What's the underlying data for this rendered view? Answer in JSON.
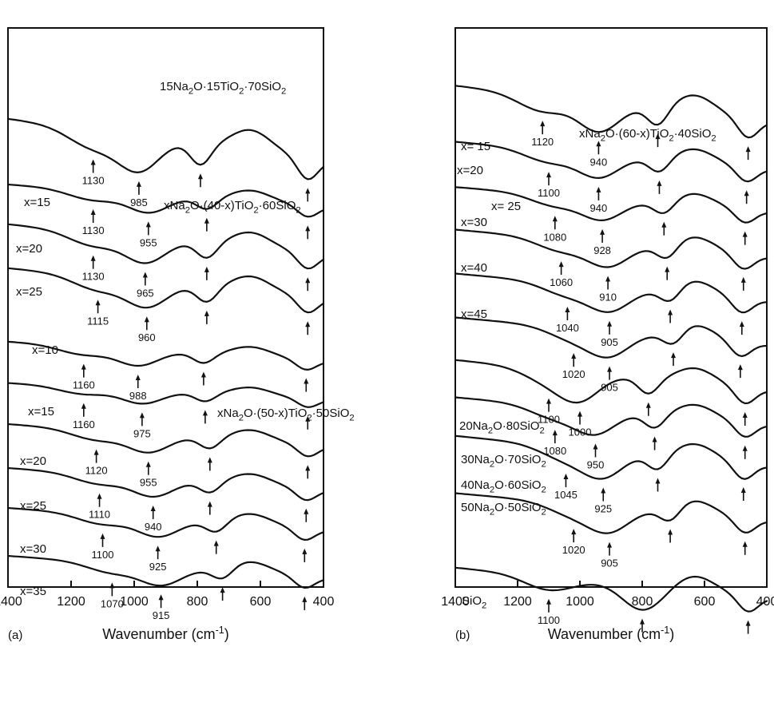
{
  "chart_data": [
    {
      "panel": "(a)",
      "type": "line",
      "xlabel": "Wavenumber (cm⁻¹)",
      "xlim": [
        1400,
        400
      ],
      "xticks": [
        1400,
        1200,
        1000,
        800,
        600,
        400
      ],
      "series": [
        {
          "name": "15Na₂O·15TiO₂·70SiO₂",
          "label": "",
          "marks": [
            {
              "x": 1130,
              "text": "1130"
            },
            {
              "x": 985,
              "text": "985"
            },
            {
              "x": 790,
              "text": ""
            },
            {
              "x": 450,
              "text": ""
            }
          ]
        },
        {
          "name": "",
          "group": "xNa₂O·(40-x)TiO₂·60SiO₂",
          "label": "x=15",
          "marks": [
            {
              "x": 1130,
              "text": "1130"
            },
            {
              "x": 955,
              "text": "955"
            },
            {
              "x": 770,
              "text": ""
            },
            {
              "x": 450,
              "text": ""
            }
          ]
        },
        {
          "name": "",
          "label": "x=20",
          "marks": [
            {
              "x": 1130,
              "text": "1130"
            },
            {
              "x": 965,
              "text": "965"
            },
            {
              "x": 770,
              "text": ""
            },
            {
              "x": 450,
              "text": ""
            }
          ]
        },
        {
          "name": "",
          "label": "x=25",
          "marks": [
            {
              "x": 1115,
              "text": "1115"
            },
            {
              "x": 960,
              "text": "960"
            },
            {
              "x": 770,
              "text": ""
            },
            {
              "x": 450,
              "text": ""
            }
          ]
        },
        {
          "name": "",
          "group": "xNa₂O·(50-x)TiO₂·50SiO₂",
          "label": "x=10",
          "marks": [
            {
              "x": 1160,
              "text": "1160"
            },
            {
              "x": 988,
              "text": "988"
            },
            {
              "x": 780,
              "text": ""
            },
            {
              "x": 455,
              "text": ""
            }
          ]
        },
        {
          "name": "",
          "label": "x=15",
          "marks": [
            {
              "x": 1160,
              "text": "1160"
            },
            {
              "x": 975,
              "text": "975"
            },
            {
              "x": 775,
              "text": ""
            },
            {
              "x": 450,
              "text": ""
            }
          ]
        },
        {
          "name": "",
          "label": "x=20",
          "marks": [
            {
              "x": 1120,
              "text": "1120"
            },
            {
              "x": 955,
              "text": "955"
            },
            {
              "x": 760,
              "text": ""
            },
            {
              "x": 450,
              "text": ""
            }
          ]
        },
        {
          "name": "",
          "label": "x=25",
          "marks": [
            {
              "x": 1110,
              "text": "1110"
            },
            {
              "x": 940,
              "text": "940"
            },
            {
              "x": 760,
              "text": ""
            },
            {
              "x": 455,
              "text": ""
            }
          ]
        },
        {
          "name": "",
          "label": "x=30",
          "marks": [
            {
              "x": 1100,
              "text": "1100"
            },
            {
              "x": 925,
              "text": "925"
            },
            {
              "x": 740,
              "text": ""
            },
            {
              "x": 460,
              "text": ""
            }
          ]
        },
        {
          "name": "",
          "label": "x=35",
          "marks": [
            {
              "x": 1070,
              "text": "1070"
            },
            {
              "x": 915,
              "text": "915"
            },
            {
              "x": 720,
              "text": ""
            },
            {
              "x": 460,
              "text": ""
            }
          ]
        }
      ]
    },
    {
      "panel": "(b)",
      "type": "line",
      "xlabel": "Wavenumber (cm⁻¹)",
      "xlim": [
        1400,
        400
      ],
      "xticks": [
        1400,
        1200,
        1000,
        800,
        600,
        400
      ],
      "series": [
        {
          "name": "",
          "group": "xNa₂O·(60-x)TiO₂·40SiO₂",
          "label": "x= 15",
          "marks": [
            {
              "x": 1120,
              "text": "1120"
            },
            {
              "x": 940,
              "text": "940"
            },
            {
              "x": 750,
              "text": ""
            },
            {
              "x": 460,
              "text": ""
            }
          ]
        },
        {
          "name": "",
          "label": "x=20",
          "marks": [
            {
              "x": 1100,
              "text": "1100"
            },
            {
              "x": 940,
              "text": "940"
            },
            {
              "x": 745,
              "text": ""
            },
            {
              "x": 465,
              "text": ""
            }
          ]
        },
        {
          "name": "",
          "label": "x= 25",
          "marks": [
            {
              "x": 1080,
              "text": "1080"
            },
            {
              "x": 928,
              "text": "928"
            },
            {
              "x": 730,
              "text": ""
            },
            {
              "x": 470,
              "text": ""
            }
          ]
        },
        {
          "name": "",
          "label": "x=30",
          "marks": [
            {
              "x": 1060,
              "text": "1060"
            },
            {
              "x": 910,
              "text": "910"
            },
            {
              "x": 720,
              "text": ""
            },
            {
              "x": 475,
              "text": ""
            }
          ]
        },
        {
          "name": "",
          "label": "x=40",
          "marks": [
            {
              "x": 1040,
              "text": "1040"
            },
            {
              "x": 905,
              "text": "905"
            },
            {
              "x": 710,
              "text": ""
            },
            {
              "x": 480,
              "text": ""
            }
          ]
        },
        {
          "name": "",
          "label": "x=45",
          "marks": [
            {
              "x": 1020,
              "text": "1020"
            },
            {
              "x": 905,
              "text": "905"
            },
            {
              "x": 700,
              "text": ""
            },
            {
              "x": 485,
              "text": ""
            }
          ]
        },
        {
          "name": "20Na₂O·80SiO₂",
          "label": "",
          "marks": [
            {
              "x": 1100,
              "text": "1100"
            },
            {
              "x": 1000,
              "text": "1000"
            },
            {
              "x": 780,
              "text": ""
            },
            {
              "x": 470,
              "text": ""
            }
          ]
        },
        {
          "name": "30Na₂O·70SiO₂",
          "label": "",
          "marks": [
            {
              "x": 1080,
              "text": "1080"
            },
            {
              "x": 950,
              "text": "950"
            },
            {
              "x": 760,
              "text": ""
            },
            {
              "x": 470,
              "text": ""
            }
          ]
        },
        {
          "name": "40Na₂O·60SiO₂",
          "label": "",
          "marks": [
            {
              "x": 1045,
              "text": "1045"
            },
            {
              "x": 925,
              "text": "925"
            },
            {
              "x": 750,
              "text": ""
            },
            {
              "x": 475,
              "text": ""
            }
          ]
        },
        {
          "name": "50Na₂O·50SiO₂",
          "label": "",
          "marks": [
            {
              "x": 1020,
              "text": "1020"
            },
            {
              "x": 905,
              "text": "905"
            },
            {
              "x": 710,
              "text": ""
            },
            {
              "x": 470,
              "text": ""
            }
          ]
        },
        {
          "name": "SiO₂",
          "label": "",
          "marks": [
            {
              "x": 1100,
              "text": "1100"
            },
            {
              "x": 800,
              "text": ""
            },
            {
              "x": 460,
              "text": ""
            }
          ]
        }
      ]
    }
  ]
}
